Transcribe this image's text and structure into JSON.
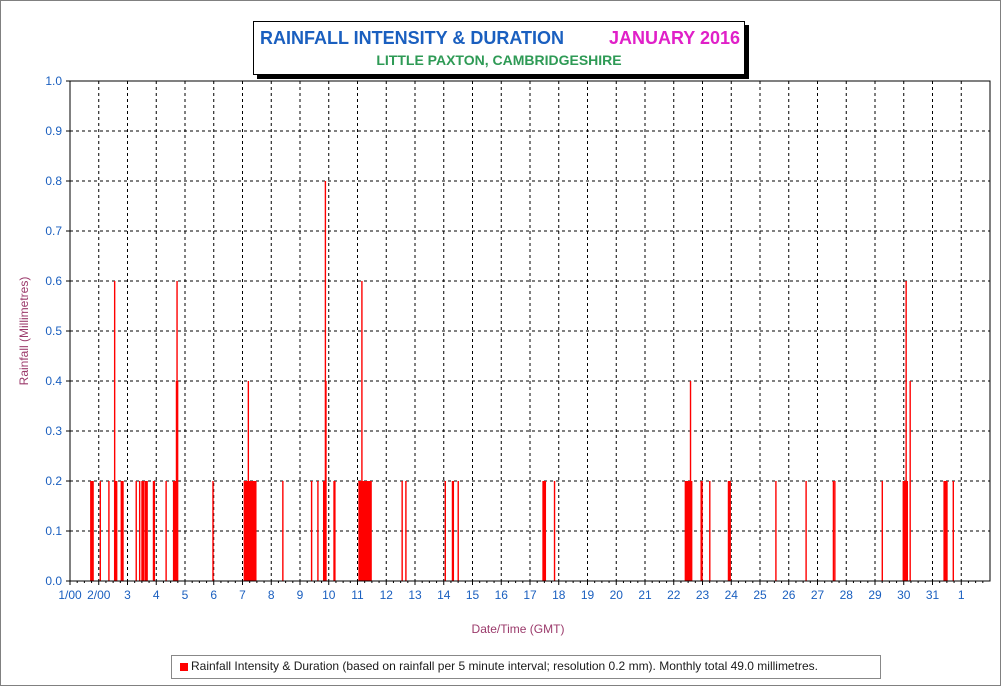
{
  "chart_data": {
    "type": "bar",
    "title": "RAINFALL INTENSITY & DURATION",
    "title_date": "JANUARY 2016",
    "subtitle": "LITTLE PAXTON, CAMBRIDGESHIRE",
    "xlabel": "Date/Time (GMT)",
    "ylabel": "Rainfall (Millimetres)",
    "xlim": [
      1,
      33
    ],
    "ylim": [
      0,
      1.0
    ],
    "yticks": [
      "0.0",
      "0.1",
      "0.2",
      "0.3",
      "0.4",
      "0.5",
      "0.6",
      "0.7",
      "0.8",
      "0.9",
      "1.0"
    ],
    "xticks": [
      {
        "x": 1,
        "label": "1/00"
      },
      {
        "x": 2,
        "label": "2/00"
      },
      {
        "x": 3,
        "label": "3"
      },
      {
        "x": 4,
        "label": "4"
      },
      {
        "x": 5,
        "label": "5"
      },
      {
        "x": 6,
        "label": "6"
      },
      {
        "x": 7,
        "label": "7"
      },
      {
        "x": 8,
        "label": "8"
      },
      {
        "x": 9,
        "label": "9"
      },
      {
        "x": 10,
        "label": "10"
      },
      {
        "x": 11,
        "label": "11"
      },
      {
        "x": 12,
        "label": "12"
      },
      {
        "x": 13,
        "label": "13"
      },
      {
        "x": 14,
        "label": "14"
      },
      {
        "x": 15,
        "label": "15"
      },
      {
        "x": 16,
        "label": "16"
      },
      {
        "x": 17,
        "label": "17"
      },
      {
        "x": 18,
        "label": "18"
      },
      {
        "x": 19,
        "label": "19"
      },
      {
        "x": 20,
        "label": "20"
      },
      {
        "x": 21,
        "label": "21"
      },
      {
        "x": 22,
        "label": "22"
      },
      {
        "x": 23,
        "label": "23"
      },
      {
        "x": 24,
        "label": "24"
      },
      {
        "x": 25,
        "label": "25"
      },
      {
        "x": 26,
        "label": "26"
      },
      {
        "x": 27,
        "label": "27"
      },
      {
        "x": 28,
        "label": "28"
      },
      {
        "x": 29,
        "label": "29"
      },
      {
        "x": 30,
        "label": "30"
      },
      {
        "x": 31,
        "label": "31"
      },
      {
        "x": 32,
        "label": "1"
      }
    ],
    "grid": true,
    "series": [
      {
        "name": "Rainfall Intensity & Duration (based on rainfall per 5 minute interval; resolution 0.2 mm). Monthly total 49.0 millimetres.",
        "color": "#ff0000",
        "points": [
          [
            1.72,
            0.2
          ],
          [
            1.74,
            0.2
          ],
          [
            1.76,
            0.2
          ],
          [
            1.78,
            0.2
          ],
          [
            1.8,
            0.2
          ],
          [
            2.05,
            0.2
          ],
          [
            2.35,
            0.2
          ],
          [
            2.55,
            0.6
          ],
          [
            2.58,
            0.2
          ],
          [
            2.6,
            0.2
          ],
          [
            2.62,
            0.2
          ],
          [
            2.78,
            0.2
          ],
          [
            2.81,
            0.2
          ],
          [
            2.84,
            0.2
          ],
          [
            3.3,
            0.2
          ],
          [
            3.42,
            0.2
          ],
          [
            3.5,
            0.2
          ],
          [
            3.52,
            0.2
          ],
          [
            3.54,
            0.2
          ],
          [
            3.56,
            0.2
          ],
          [
            3.62,
            0.2
          ],
          [
            3.64,
            0.2
          ],
          [
            3.66,
            0.2
          ],
          [
            3.68,
            0.2
          ],
          [
            3.9,
            0.2
          ],
          [
            3.93,
            0.2
          ],
          [
            4.34,
            0.2
          ],
          [
            4.6,
            0.2
          ],
          [
            4.62,
            0.2
          ],
          [
            4.64,
            0.2
          ],
          [
            4.66,
            0.2
          ],
          [
            4.7,
            0.4
          ],
          [
            4.72,
            0.6
          ],
          [
            4.74,
            0.4
          ],
          [
            5.97,
            0.2
          ],
          [
            7.06,
            0.2
          ],
          [
            7.08,
            0.2
          ],
          [
            7.1,
            0.2
          ],
          [
            7.12,
            0.2
          ],
          [
            7.14,
            0.2
          ],
          [
            7.16,
            0.2
          ],
          [
            7.18,
            0.2
          ],
          [
            7.2,
            0.4
          ],
          [
            7.22,
            0.2
          ],
          [
            7.24,
            0.2
          ],
          [
            7.26,
            0.2
          ],
          [
            7.28,
            0.2
          ],
          [
            7.3,
            0.2
          ],
          [
            7.32,
            0.2
          ],
          [
            7.34,
            0.2
          ],
          [
            7.36,
            0.2
          ],
          [
            7.38,
            0.2
          ],
          [
            7.4,
            0.2
          ],
          [
            7.42,
            0.2
          ],
          [
            7.44,
            0.2
          ],
          [
            7.46,
            0.2
          ],
          [
            8.4,
            0.2
          ],
          [
            9.4,
            0.2
          ],
          [
            9.62,
            0.2
          ],
          [
            9.82,
            0.2
          ],
          [
            9.85,
            0.2
          ],
          [
            9.88,
            0.8
          ],
          [
            9.9,
            0.4
          ],
          [
            10.18,
            0.2
          ],
          [
            10.21,
            0.2
          ],
          [
            11.05,
            0.2
          ],
          [
            11.07,
            0.2
          ],
          [
            11.09,
            0.2
          ],
          [
            11.11,
            0.2
          ],
          [
            11.13,
            0.2
          ],
          [
            11.15,
            0.6
          ],
          [
            11.17,
            0.2
          ],
          [
            11.19,
            0.2
          ],
          [
            11.21,
            0.2
          ],
          [
            11.23,
            0.2
          ],
          [
            11.25,
            0.2
          ],
          [
            11.27,
            0.2
          ],
          [
            11.29,
            0.2
          ],
          [
            11.31,
            0.2
          ],
          [
            11.33,
            0.2
          ],
          [
            11.35,
            0.2
          ],
          [
            11.37,
            0.2
          ],
          [
            11.39,
            0.2
          ],
          [
            11.41,
            0.2
          ],
          [
            11.43,
            0.2
          ],
          [
            11.45,
            0.2
          ],
          [
            11.47,
            0.2
          ],
          [
            12.55,
            0.2
          ],
          [
            12.68,
            0.2
          ],
          [
            14.05,
            0.2
          ],
          [
            14.3,
            0.2
          ],
          [
            14.33,
            0.2
          ],
          [
            14.5,
            0.2
          ],
          [
            17.45,
            0.2
          ],
          [
            17.47,
            0.2
          ],
          [
            17.49,
            0.2
          ],
          [
            17.51,
            0.2
          ],
          [
            17.53,
            0.2
          ],
          [
            17.85,
            0.2
          ],
          [
            22.4,
            0.2
          ],
          [
            22.42,
            0.2
          ],
          [
            22.44,
            0.2
          ],
          [
            22.46,
            0.2
          ],
          [
            22.48,
            0.2
          ],
          [
            22.5,
            0.2
          ],
          [
            22.52,
            0.2
          ],
          [
            22.54,
            0.2
          ],
          [
            22.56,
            0.2
          ],
          [
            22.58,
            0.4
          ],
          [
            22.6,
            0.2
          ],
          [
            22.62,
            0.2
          ],
          [
            22.95,
            0.2
          ],
          [
            22.98,
            0.2
          ],
          [
            23.25,
            0.2
          ],
          [
            23.9,
            0.2
          ],
          [
            23.93,
            0.2
          ],
          [
            23.96,
            0.2
          ],
          [
            25.55,
            0.2
          ],
          [
            26.6,
            0.2
          ],
          [
            27.55,
            0.2
          ],
          [
            27.6,
            0.2
          ],
          [
            29.25,
            0.2
          ],
          [
            29.98,
            0.2
          ],
          [
            30.0,
            0.2
          ],
          [
            30.02,
            0.2
          ],
          [
            30.04,
            0.2
          ],
          [
            30.06,
            0.2
          ],
          [
            30.08,
            0.6
          ],
          [
            30.1,
            0.2
          ],
          [
            30.12,
            0.2
          ],
          [
            30.22,
            0.4
          ],
          [
            31.4,
            0.2
          ],
          [
            31.42,
            0.2
          ],
          [
            31.44,
            0.2
          ],
          [
            31.46,
            0.2
          ],
          [
            31.48,
            0.2
          ],
          [
            31.5,
            0.2
          ],
          [
            31.72,
            0.2
          ]
        ]
      }
    ]
  }
}
